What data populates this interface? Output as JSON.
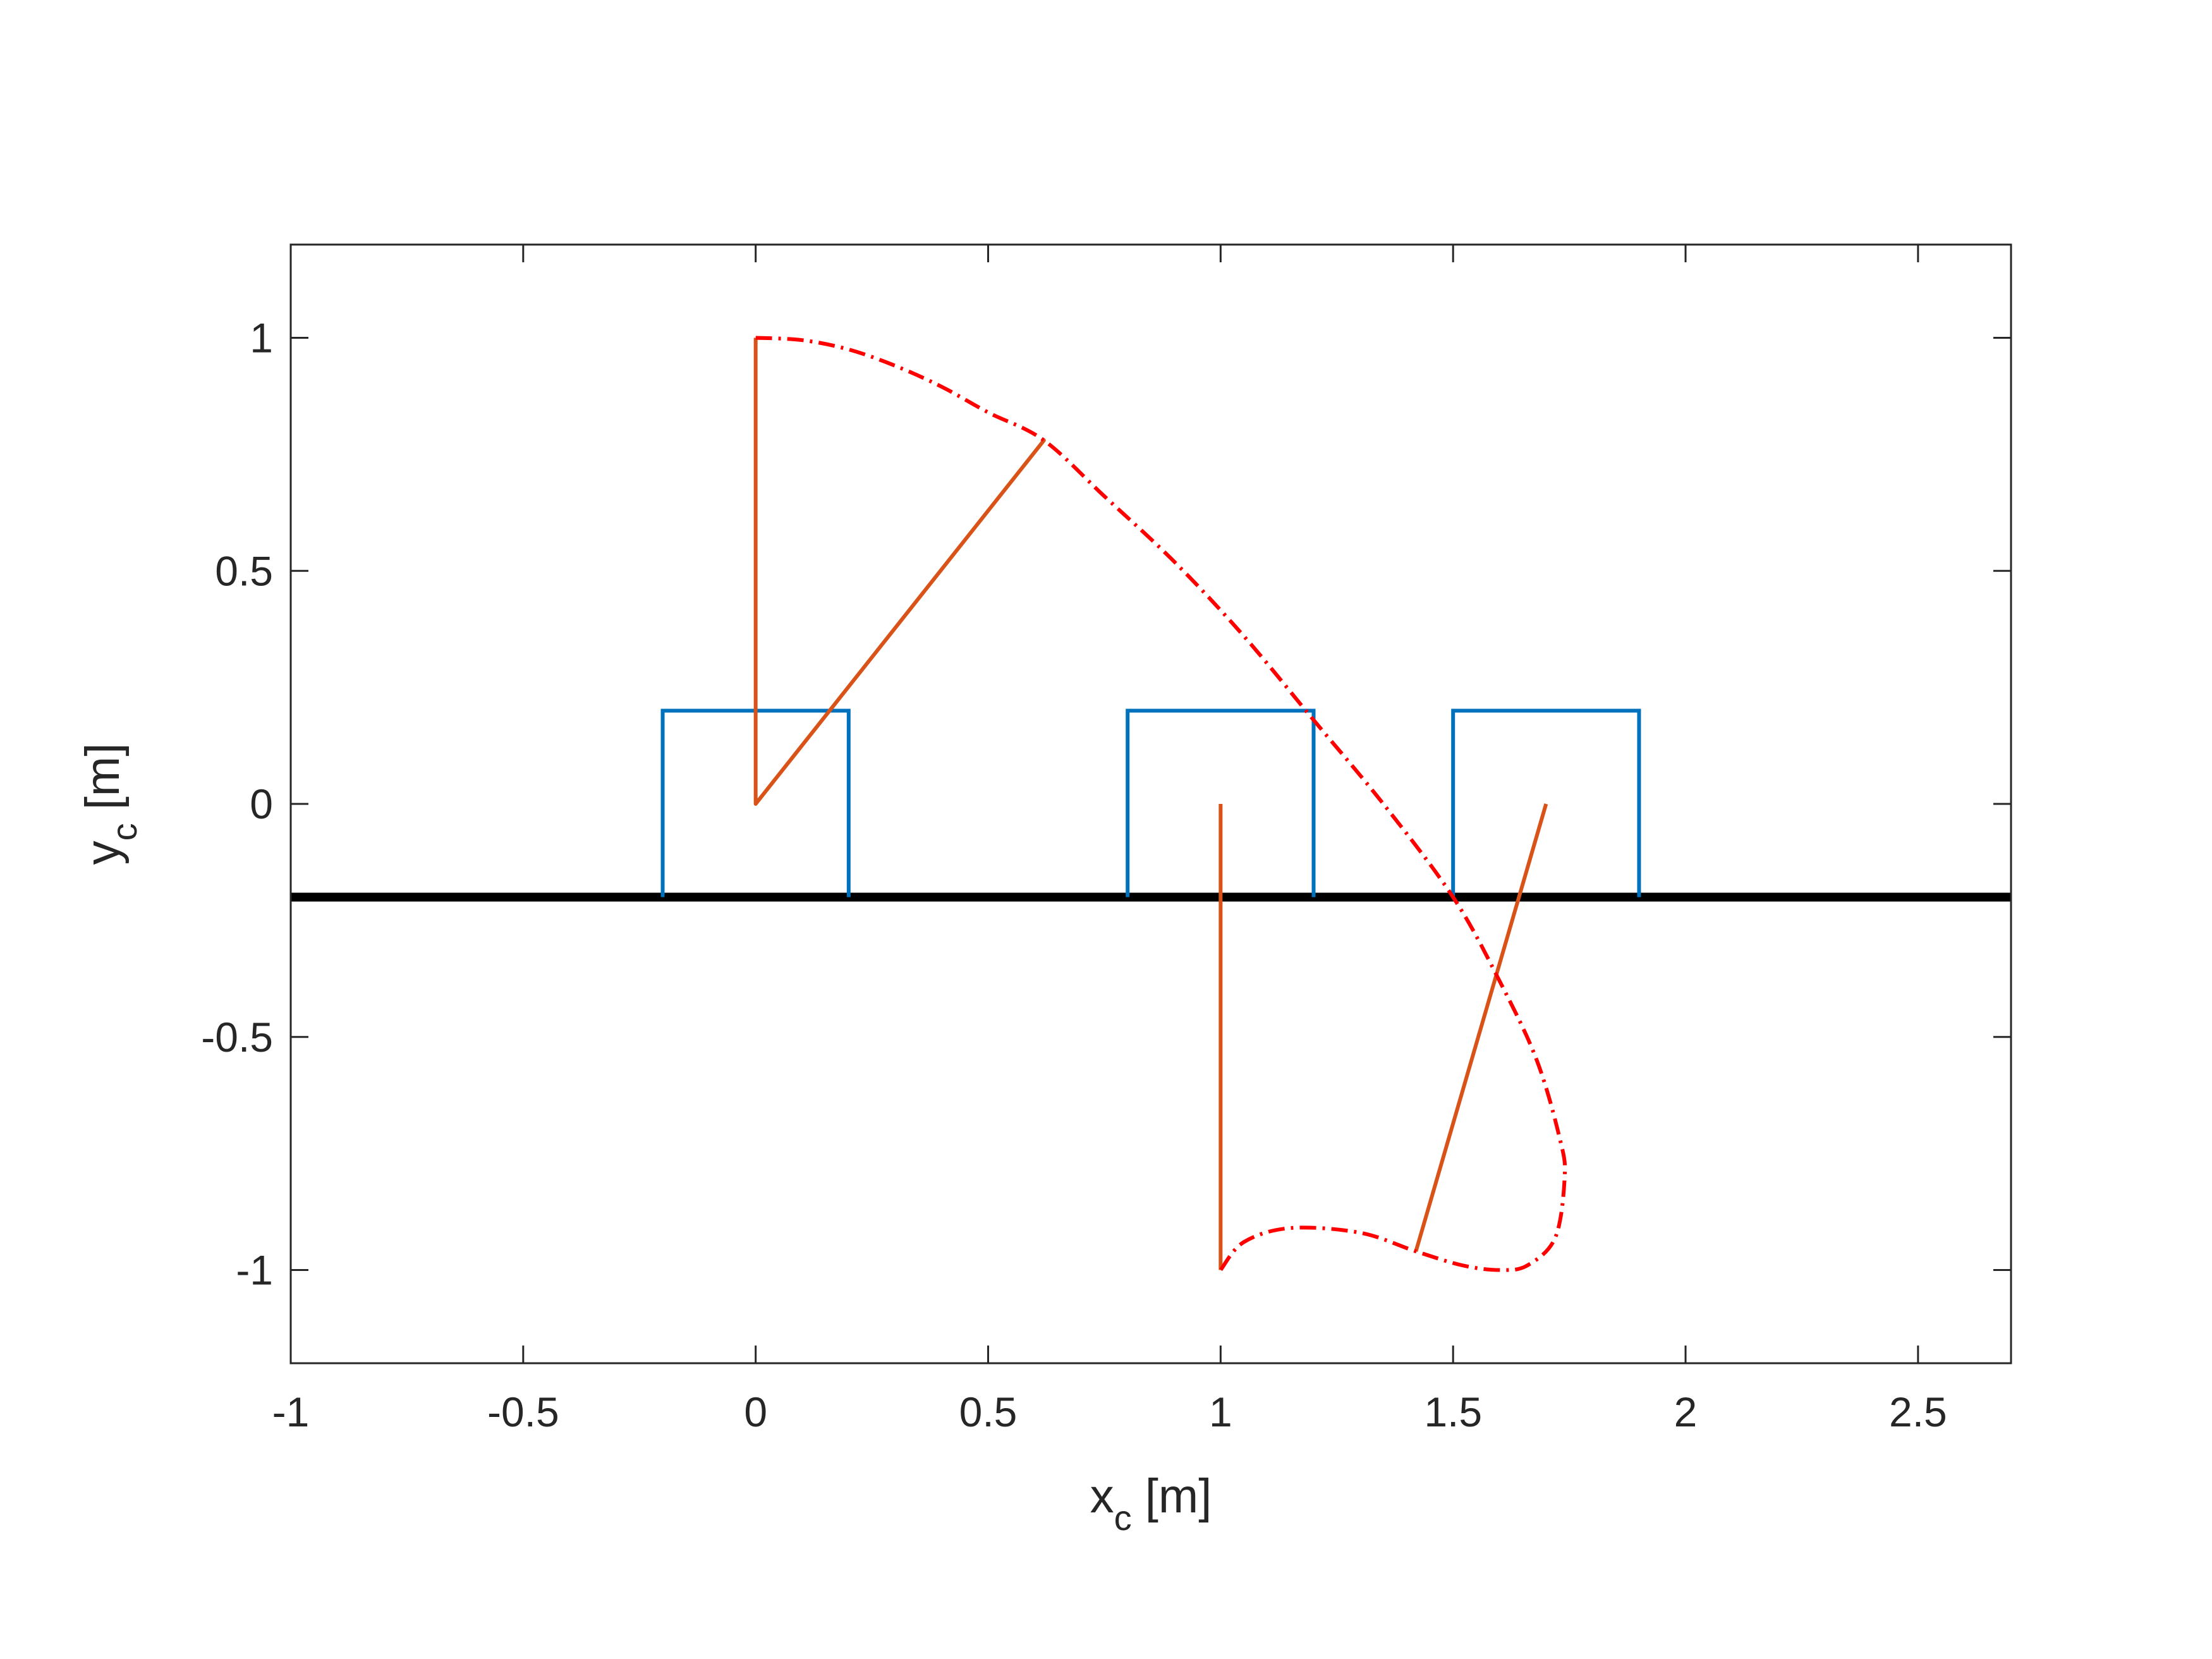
{
  "chart_data": {
    "type": "line",
    "xlabel": {
      "main": "x",
      "sub": "c",
      "unit": "[m]"
    },
    "ylabel": {
      "main": "y",
      "sub": "c",
      "unit": "[m]"
    },
    "xlim": [
      -1,
      2.7
    ],
    "ylim": [
      -1.2,
      1.2
    ],
    "xticks": [
      -1,
      -0.5,
      0,
      0.5,
      1,
      1.5,
      2,
      2.5
    ],
    "xtick_labels": [
      "-1",
      "-0.5",
      "0",
      "0.5",
      "1",
      "1.5",
      "2",
      "2.5"
    ],
    "yticks": [
      -1,
      -0.5,
      0,
      0.5,
      1
    ],
    "ytick_labels": [
      "-1",
      "-0.5",
      "0",
      "0.5",
      "1"
    ],
    "grid": false,
    "box": true,
    "colors": {
      "ground": "#000000",
      "cart": "#0072BD",
      "pendulum": "#D95319",
      "trajectory": "#FF0000",
      "axes": "#262626"
    },
    "ground": {
      "y": -0.2
    },
    "carts": [
      {
        "x": [
          -0.2,
          -0.2,
          0.2,
          0.2
        ],
        "y": [
          -0.2,
          0.2,
          0.2,
          -0.2
        ]
      },
      {
        "x": [
          0.8,
          0.8,
          1.2,
          1.2
        ],
        "y": [
          -0.2,
          0.2,
          0.2,
          -0.2
        ]
      },
      {
        "x": [
          1.5,
          1.5,
          1.9,
          1.9
        ],
        "y": [
          -0.2,
          0.2,
          0.2,
          -0.2
        ]
      }
    ],
    "pendulum_segments": [
      {
        "x": [
          0,
          0,
          0.62,
          0
        ],
        "y": [
          1,
          0,
          0.78,
          0
        ]
      },
      {
        "x": [
          1,
          1
        ],
        "y": [
          0,
          -1
        ]
      },
      {
        "x": [
          1.7,
          1.42
        ],
        "y": [
          0,
          -0.96
        ]
      }
    ],
    "trajectory": {
      "style": "dash-dot",
      "x": [
        0,
        0.1,
        0.2,
        0.3,
        0.4,
        0.5,
        0.62,
        0.75,
        0.9,
        1.05,
        1.2,
        1.35,
        1.5,
        1.6,
        1.68,
        1.73,
        1.74,
        1.72,
        1.66,
        1.6,
        1.52,
        1.42,
        1.3,
        1.15,
        1.05,
        1.0
      ],
      "y": [
        1,
        0.995,
        0.975,
        0.94,
        0.895,
        0.84,
        0.78,
        0.66,
        0.52,
        0.36,
        0.18,
        0.0,
        -0.2,
        -0.38,
        -0.55,
        -0.72,
        -0.8,
        -0.93,
        -0.99,
        -1.0,
        -0.99,
        -0.96,
        -0.92,
        -0.91,
        -0.94,
        -1.0
      ]
    }
  }
}
